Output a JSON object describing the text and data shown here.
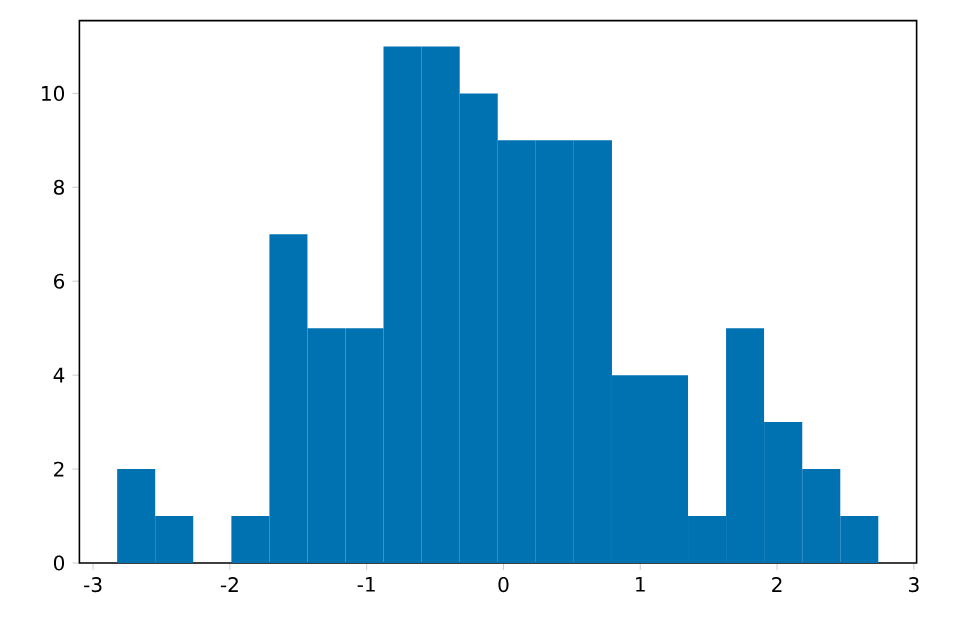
{
  "chart_data": {
    "type": "histogram",
    "bins": [
      -2.824,
      -2.546,
      -2.268,
      -1.989,
      -1.711,
      -1.433,
      -1.155,
      -0.877,
      -0.598,
      -0.32,
      -0.042,
      0.236,
      0.514,
      0.793,
      1.071,
      1.349,
      1.627,
      1.905,
      2.184,
      2.462,
      2.74
    ],
    "values": [
      2,
      1,
      0,
      1,
      7,
      5,
      5,
      11,
      11,
      10,
      9,
      9,
      9,
      4,
      4,
      1,
      5,
      3,
      2,
      1
    ],
    "color": "#0072b2",
    "xlim": [
      -3.1,
      3.02
    ],
    "ylim": [
      0,
      11.55
    ],
    "xticks": [
      -3,
      -2,
      -1,
      0,
      1,
      2,
      3
    ],
    "yticks": [
      0,
      2,
      4,
      6,
      8,
      10
    ]
  }
}
